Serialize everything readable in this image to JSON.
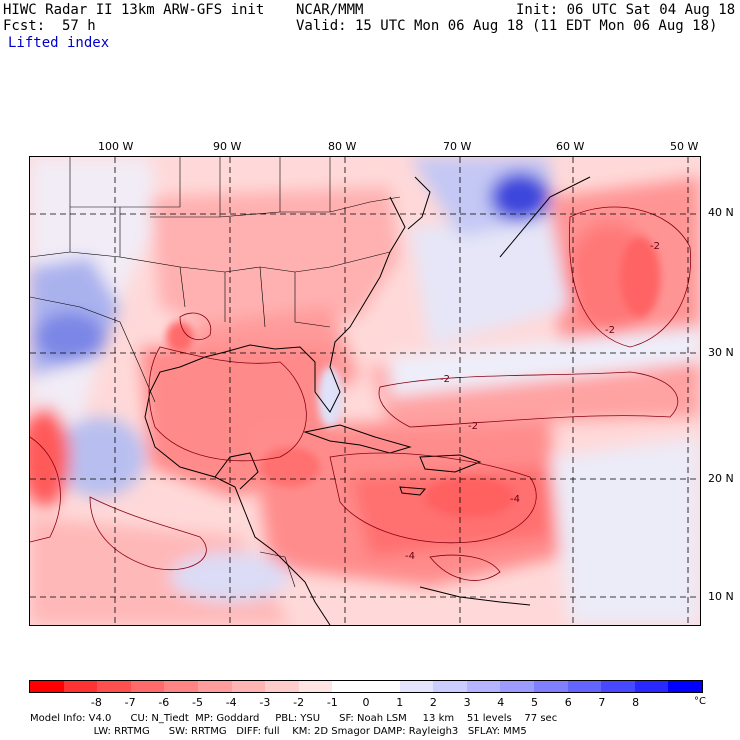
{
  "header": {
    "title_left": "HIWC Radar II 13km ARW-GFS init",
    "center": "NCAR/MMM",
    "init": "Init: 06 UTC Sat 04 Aug 18",
    "fcst_label": "Fcst:",
    "fcst_value": "57 h",
    "valid": "Valid: 15 UTC Mon 06 Aug 18 (11 EDT Mon 06 Aug 18)",
    "field": "Lifted index"
  },
  "map": {
    "lon_labels": [
      "100 W",
      "90 W",
      "80 W",
      "70 W",
      "60 W",
      "50 W"
    ],
    "lat_labels": [
      "40 N",
      "30 N",
      "20 N",
      "10 N"
    ],
    "contour_labels": [
      "-2",
      "-2",
      "-2",
      "-2",
      "-4",
      "-4"
    ]
  },
  "colorbar": {
    "labels": [
      "-8",
      "-7",
      "-6",
      "-5",
      "-4",
      "-3",
      "-2",
      "-1",
      "0",
      "1",
      "2",
      "3",
      "4",
      "5",
      "6",
      "7",
      "8"
    ],
    "unit": "°C",
    "colors": [
      "#ff0000",
      "#ff3333",
      "#ff5050",
      "#ff6a6a",
      "#ff8484",
      "#ff9c9c",
      "#ffb4b4",
      "#ffcccc",
      "#ffe4e4",
      "#ffffff",
      "#ffffff",
      "#e4e4ff",
      "#cccdff",
      "#b4b4ff",
      "#9c9cff",
      "#8080ff",
      "#6464ff",
      "#4848ff",
      "#2828ff",
      "#0000ff"
    ]
  },
  "footer": {
    "line1": "Model Info: V4.0      CU: N_Tiedt  MP: Goddard     PBL: YSU      SF: Noah LSM     13 km    51 levels    77 sec",
    "line2": "                    LW: RRTMG      SW: RRTMG   DIFF: full    KM: 2D Smagor DAMP: Rayleigh3   SFLAY: MM5"
  }
}
